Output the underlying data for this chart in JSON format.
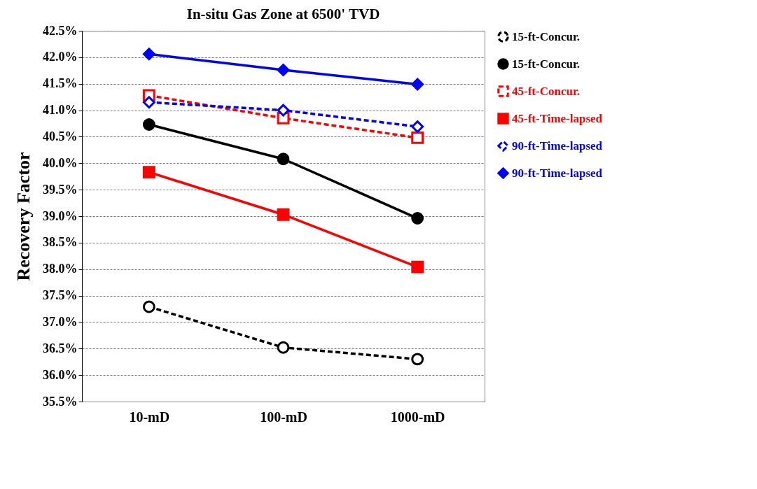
{
  "chart_data": {
    "type": "line",
    "title": "In-situ Gas Zone at 6500' TVD",
    "ylabel": "Recovery Factor",
    "categories": [
      "10-mD",
      "100-mD",
      "1000-mD"
    ],
    "ylim": [
      35.5,
      42.5
    ],
    "yticks": [
      {
        "value": 35.5,
        "label": "35.5%"
      },
      {
        "value": 36,
        "label": "36.0%"
      },
      {
        "value": 36.5,
        "label": "36.5%"
      },
      {
        "value": 37,
        "label": "37.0%"
      },
      {
        "value": 37.5,
        "label": "37.5%"
      },
      {
        "value": 38,
        "label": "38.0%"
      },
      {
        "value": 38.5,
        "label": "38.5%"
      },
      {
        "value": 39,
        "label": "39.0%"
      },
      {
        "value": 39.5,
        "label": "39.5%"
      },
      {
        "value": 40,
        "label": "40.0%"
      },
      {
        "value": 40.5,
        "label": "40.5%"
      },
      {
        "value": 41,
        "label": "41.0%"
      },
      {
        "value": 41.5,
        "label": "41.5%"
      },
      {
        "value": 42,
        "label": "42.0%"
      },
      {
        "value": 42.5,
        "label": "42.5%"
      }
    ],
    "grid": "y",
    "legend": "right",
    "series": [
      {
        "name": "15-ft-Concur.",
        "color": "#000000",
        "values": [
          37.29,
          36.52,
          36.3
        ],
        "marker": "circle",
        "line_style": "dashed"
      },
      {
        "name": "15-ft-Concur.",
        "color": "#000000",
        "values": [
          40.73,
          40.08,
          38.96
        ],
        "marker": "circle",
        "line_style": "solid"
      },
      {
        "name": "45-ft-Concur.",
        "color": "#ff0000",
        "values": [
          41.28,
          40.85,
          40.48
        ],
        "marker": "square",
        "line_style": "dashed"
      },
      {
        "name": "45-ft-Time-lapsed",
        "color": "#ff0000",
        "values": [
          39.83,
          39.03,
          38.04
        ],
        "marker": "square",
        "line_style": "solid"
      },
      {
        "name": "90-ft-Time-lapsed",
        "color": "#0000ff",
        "values": [
          41.15,
          41.0,
          40.69
        ],
        "marker": "diamond",
        "line_style": "dashed"
      },
      {
        "name": "90-ft-Time-lapsed",
        "color": "#0000ff",
        "values": [
          42.06,
          41.76,
          41.49
        ],
        "marker": "diamond",
        "line_style": "solid"
      }
    ]
  }
}
